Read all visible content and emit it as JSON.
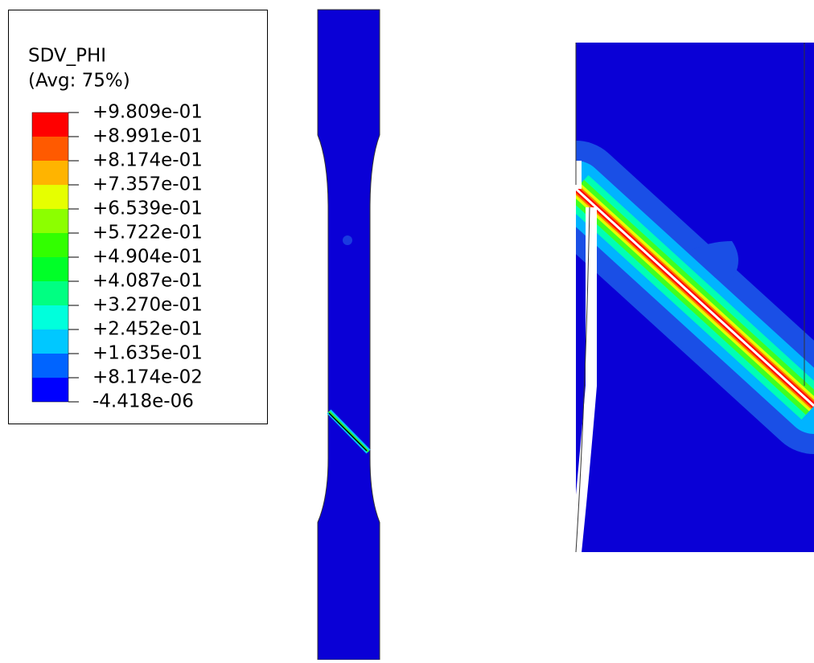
{
  "legend": {
    "title": "SDV_PHI",
    "subtitle": "(Avg: 75%)",
    "labels": [
      "+9.809e-01",
      "+8.991e-01",
      "+8.174e-01",
      "+7.357e-01",
      "+6.539e-01",
      "+5.722e-01",
      "+4.904e-01",
      "+4.087e-01",
      "+3.270e-01",
      "+2.452e-01",
      "+1.635e-01",
      "+8.174e-02",
      "-4.418e-06"
    ],
    "colors": [
      "#ff0000",
      "#ff5a00",
      "#ffb400",
      "#e6ff00",
      "#8cff00",
      "#32ff00",
      "#00ff28",
      "#00ff82",
      "#00ffdc",
      "#00c8ff",
      "#0064ff",
      "#0000ff"
    ]
  }
}
